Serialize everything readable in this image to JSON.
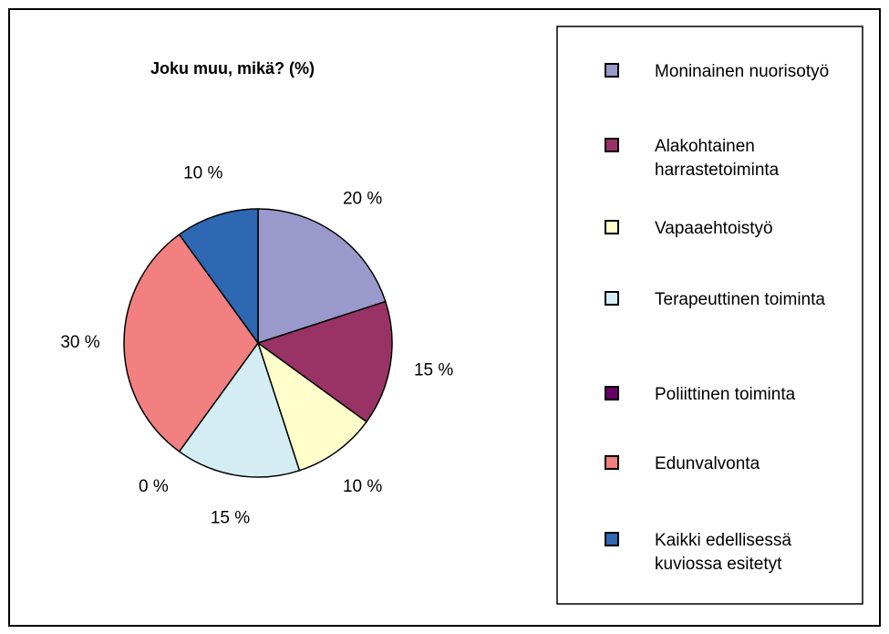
{
  "chart_data": {
    "type": "pie",
    "title": "Joku muu, mikä? (%)",
    "categories": [
      "Moninainen nuorisotyö",
      "Alakohtainen harrastetoiminta",
      "Vapaaehtoistyö",
      "Terapeuttinen toiminta",
      "Poliittinen toiminta",
      "Edunvalvonta",
      "Kaikki edellisessä kuviossa esitetyt"
    ],
    "values": [
      20,
      15,
      10,
      15,
      0,
      30,
      10
    ],
    "value_labels": [
      "20 %",
      "15 %",
      "10 %",
      "15 %",
      "0 %",
      "30 %",
      "10 %"
    ],
    "colors": [
      "#9999cc",
      "#993366",
      "#ffffcc",
      "#d4edf4",
      "#660066",
      "#f28080",
      "#2e67b2"
    ],
    "legend": "right"
  }
}
